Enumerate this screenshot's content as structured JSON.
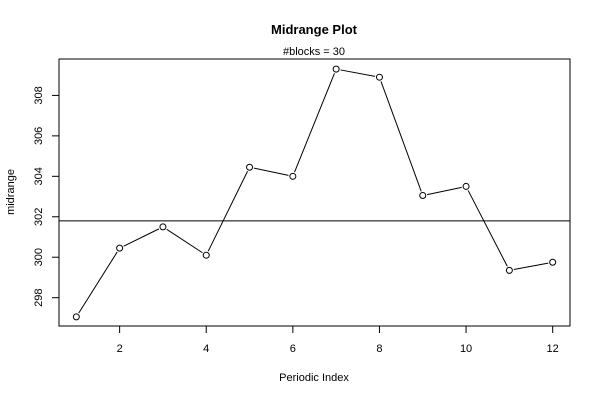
{
  "chart_data": {
    "type": "line",
    "title": "Midrange Plot",
    "subtitle": "#blocks =  30",
    "xlabel": "Periodic Index",
    "ylabel": "midrange",
    "x": [
      1,
      2,
      3,
      4,
      5,
      6,
      7,
      8,
      9,
      10,
      11,
      12
    ],
    "series": [
      {
        "values": [
          297.05,
          300.45,
          301.5,
          300.1,
          304.45,
          304.0,
          309.3,
          308.9,
          303.05,
          303.5,
          299.35,
          299.75
        ]
      }
    ],
    "reference_line": 301.8,
    "xlim": [
      0.6,
      12.4
    ],
    "ylim": [
      296.6,
      309.8
    ],
    "xticks": [
      2,
      4,
      6,
      8,
      10,
      12
    ],
    "yticks": [
      298,
      300,
      302,
      304,
      306,
      308
    ],
    "marker": "open-circle",
    "grid": false,
    "legend": "none"
  }
}
